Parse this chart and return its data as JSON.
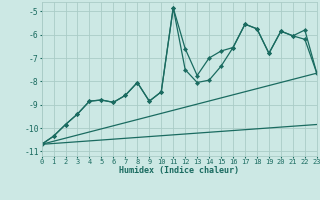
{
  "xlabel": "Humidex (Indice chaleur)",
  "xlim": [
    0,
    23
  ],
  "ylim": [
    -11.2,
    -4.6
  ],
  "yticks": [
    -11,
    -10,
    -9,
    -8,
    -7,
    -6,
    -5
  ],
  "xticks": [
    0,
    1,
    2,
    3,
    4,
    5,
    6,
    7,
    8,
    9,
    10,
    11,
    12,
    13,
    14,
    15,
    16,
    17,
    18,
    19,
    20,
    21,
    22,
    23
  ],
  "bg_color": "#cce8e4",
  "grid_color": "#aaccc7",
  "line_color": "#1a6b60",
  "lines": [
    {
      "x": [
        0,
        1,
        2,
        3,
        4,
        5,
        6,
        7,
        8,
        9,
        10,
        11,
        12,
        13,
        14,
        15,
        16,
        17,
        18,
        19,
        20,
        21,
        22,
        23
      ],
      "y": [
        -10.7,
        -10.35,
        -9.85,
        -9.4,
        -8.85,
        -8.8,
        -8.9,
        -8.6,
        -8.05,
        -8.85,
        -8.45,
        -4.85,
        -6.6,
        -7.75,
        -7.0,
        -6.7,
        -6.55,
        -5.55,
        -5.75,
        -6.8,
        -5.85,
        -6.05,
        -5.8,
        -7.65
      ],
      "marker": "D",
      "markersize": 2.2,
      "linewidth": 0.9
    },
    {
      "x": [
        0,
        1,
        2,
        3,
        4,
        5,
        6,
        7,
        8,
        9,
        10,
        11,
        12,
        13,
        14,
        15,
        16,
        17,
        18,
        19,
        20,
        21,
        22,
        23
      ],
      "y": [
        -10.7,
        -10.35,
        -9.85,
        -9.4,
        -8.85,
        -8.8,
        -8.9,
        -8.6,
        -8.05,
        -8.85,
        -8.45,
        -4.85,
        -7.5,
        -8.05,
        -7.95,
        -7.35,
        -6.55,
        -5.55,
        -5.75,
        -6.8,
        -5.85,
        -6.05,
        -6.2,
        -7.65
      ],
      "marker": "D",
      "markersize": 2.2,
      "linewidth": 0.9
    },
    {
      "x": [
        0,
        23
      ],
      "y": [
        -10.7,
        -7.65
      ],
      "marker": "none",
      "linewidth": 0.9
    },
    {
      "x": [
        0,
        23
      ],
      "y": [
        -10.7,
        -9.85
      ],
      "marker": "none",
      "linewidth": 0.9
    }
  ]
}
